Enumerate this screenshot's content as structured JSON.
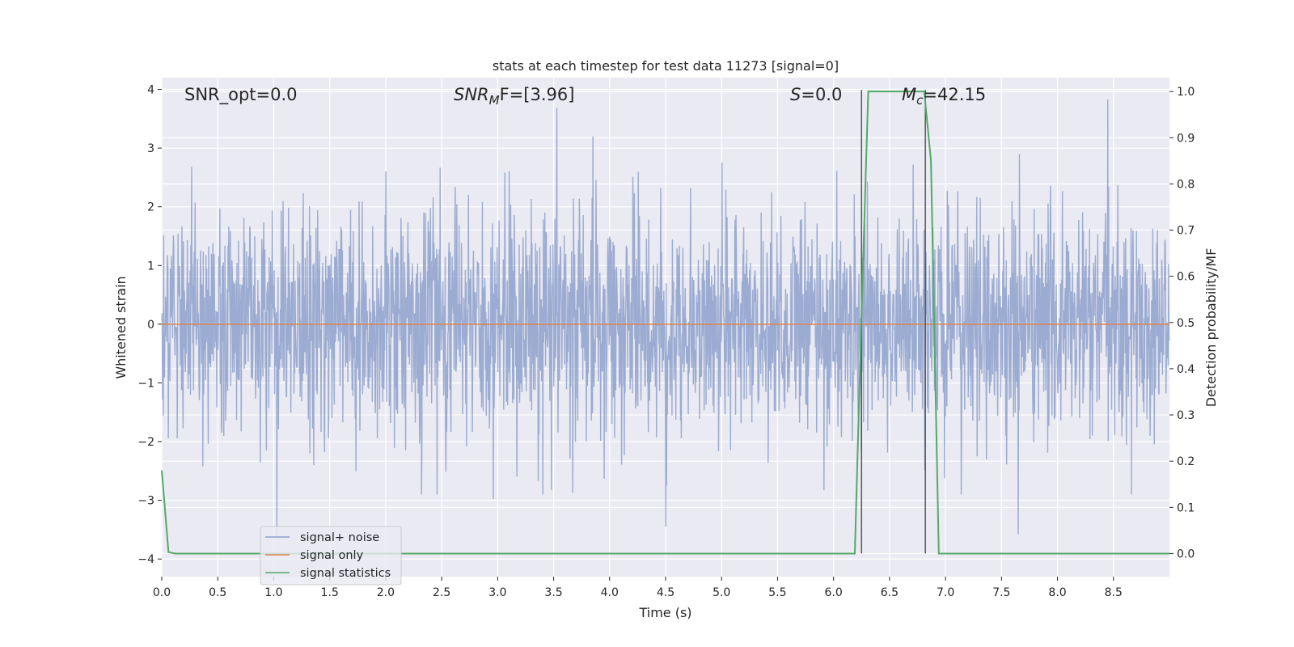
{
  "chart_data": {
    "type": "line",
    "title": "stats at each timestep for test data 11273 [signal=0]",
    "xlabel": "Time (s)",
    "ylabel": "Whitened strain",
    "y2label": "Detection probability/MF",
    "xlim": [
      0.0,
      9.0
    ],
    "ylim": [
      -4.3,
      4.2
    ],
    "y2lim": [
      -0.05,
      1.03
    ],
    "x_ticks": [
      0.0,
      0.5,
      1.0,
      1.5,
      2.0,
      2.5,
      3.0,
      3.5,
      4.0,
      4.5,
      5.0,
      5.5,
      6.0,
      6.5,
      7.0,
      7.5,
      8.0,
      8.5
    ],
    "x_tick_labels": [
      "0.0",
      "0.5",
      "1.0",
      "1.5",
      "2.0",
      "2.5",
      "3.0",
      "3.5",
      "4.0",
      "4.5",
      "5.0",
      "5.5",
      "6.0",
      "6.5",
      "7.0",
      "7.5",
      "8.0",
      "8.5"
    ],
    "y_ticks": [
      -4,
      -3,
      -2,
      -1,
      0,
      1,
      2,
      3,
      4
    ],
    "y_tick_labels": [
      "−4",
      "−3",
      "−2",
      "−1",
      "0",
      "1",
      "2",
      "3",
      "4"
    ],
    "y2_ticks": [
      0.0,
      0.1,
      0.2,
      0.3,
      0.4,
      0.5,
      0.6,
      0.7,
      0.8,
      0.9,
      1.0
    ],
    "y2_tick_labels": [
      "0.0",
      "0.1",
      "0.2",
      "0.3",
      "0.4",
      "0.5",
      "0.6",
      "0.7",
      "0.8",
      "0.9",
      "1.0"
    ],
    "grid": true,
    "legend_placement": "lower-left",
    "annotations": {
      "snr_opt": "SNR_opt=0.0",
      "snr_mf_main": "SNR",
      "snr_mf_sub": "M",
      "snr_mf_rest": "F=[3.96]",
      "s_main": "S",
      "s_rest": "=0.0",
      "mc_main": "M",
      "mc_sub": "c",
      "mc_rest": "=42.15"
    },
    "series": [
      {
        "name": "signal+ noise",
        "color": "#8da0cb",
        "axis": "left",
        "style": "noise",
        "t_range": [
          0.0,
          9.0
        ],
        "amplitude_std": 1.0,
        "peaks": [
          [
            3.53,
            3.68
          ],
          [
            3.85,
            3.2
          ],
          [
            8.45,
            3.83
          ],
          [
            1.03,
            -3.6
          ],
          [
            4.5,
            -3.45
          ],
          [
            7.65,
            -3.58
          ],
          [
            2.96,
            -2.98
          ]
        ]
      },
      {
        "name": "signal only",
        "color": "#dd8452",
        "axis": "left",
        "x": [
          0.0,
          9.0
        ],
        "y": [
          0.0,
          0.0
        ]
      },
      {
        "name": "signal statistics",
        "color": "#55a868",
        "axis": "right",
        "x": [
          0.0,
          0.06,
          0.12,
          6.19,
          6.25,
          6.31,
          6.81,
          6.87,
          6.94,
          9.0
        ],
        "y": [
          0.18,
          0.003,
          0.0,
          0.0,
          0.52,
          1.0,
          1.0,
          0.85,
          0.0,
          0.0
        ]
      }
    ],
    "vertical_markers": {
      "color": "#555555",
      "x": [
        6.25,
        6.82
      ]
    }
  },
  "legend": {
    "noise": "signal+ noise",
    "signal": "signal only",
    "stats": "signal statistics"
  }
}
